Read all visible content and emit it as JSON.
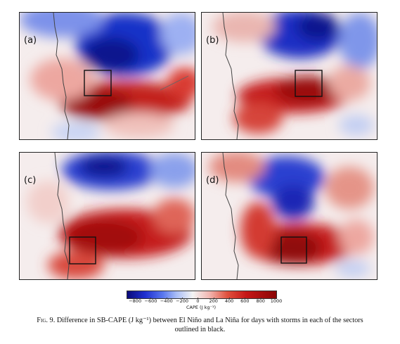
{
  "panels": [
    {
      "label": "(a)"
    },
    {
      "label": "(b)"
    },
    {
      "label": "(c)"
    },
    {
      "label": "(d)"
    }
  ],
  "colorbar": {
    "ticks": [
      "−800",
      "−600",
      "−400",
      "−200",
      "0",
      "200",
      "400",
      "600",
      "800",
      "1000"
    ],
    "label": "CAPE (J kg⁻¹)",
    "range": [
      -900,
      1000
    ],
    "colors": {
      "min": "#0a0a7a",
      "neutral": "#f4f4f4",
      "max": "#8a0505"
    }
  },
  "caption": {
    "prefix": "Fig. 9.",
    "text_line1": " Difference in SB-CAPE (J kg⁻¹) between El Niño and La Niña for days with storms in each of the sectors",
    "text_line2": "outlined in black."
  }
}
